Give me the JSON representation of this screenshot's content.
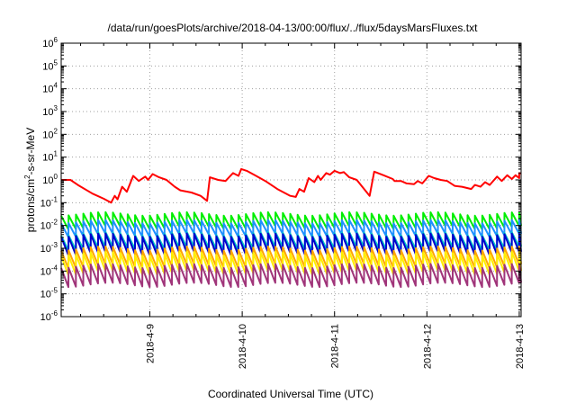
{
  "chart_data": {
    "type": "line",
    "title": "/data/run/goesPlots/archive/2018-04-13/00:00/flux/../flux/5daysMarsFluxes.txt",
    "xlabel": "Coordinated Universal Time (UTC)",
    "ylabel": "protons/cm²-s-sr-MeV",
    "ylabel_base": "protons/cm",
    "ylabel_sup": "2",
    "ylabel_tail": "-s-sr-MeV",
    "yscale": "log",
    "ylim_exp": [
      -6,
      6
    ],
    "yticks": [
      {
        "exp": -6,
        "base": "10",
        "sup": "-6"
      },
      {
        "exp": -5,
        "base": "10",
        "sup": "-5"
      },
      {
        "exp": -4,
        "base": "10",
        "sup": "-4"
      },
      {
        "exp": -3,
        "base": "10",
        "sup": "-3"
      },
      {
        "exp": -2,
        "base": "10",
        "sup": "-2"
      },
      {
        "exp": -1,
        "base": "10",
        "sup": "-1"
      },
      {
        "exp": 0,
        "base": "10",
        "sup": "0"
      },
      {
        "exp": 1,
        "base": "10",
        "sup": "1"
      },
      {
        "exp": 2,
        "base": "10",
        "sup": "2"
      },
      {
        "exp": 3,
        "base": "10",
        "sup": "3"
      },
      {
        "exp": 4,
        "base": "10",
        "sup": "4"
      },
      {
        "exp": 5,
        "base": "10",
        "sup": "5"
      },
      {
        "exp": 6,
        "base": "10",
        "sup": "6"
      }
    ],
    "xlim_days": [
      -0.96,
      4.02
    ],
    "xticks": [
      {
        "day": 0,
        "label": "2018-4-9"
      },
      {
        "day": 1,
        "label": "2018-4-10"
      },
      {
        "day": 2,
        "label": "2018-4-11"
      },
      {
        "day": 3,
        "label": "2018-4-12"
      },
      {
        "day": 4,
        "label": "2018-4-13"
      }
    ],
    "grid": true,
    "series": [
      {
        "color": "#ff0000",
        "points": [
          [
            -0.96,
            1.0
          ],
          [
            -0.86,
            1.0
          ],
          [
            -0.78,
            0.6
          ],
          [
            -0.62,
            0.25
          ],
          [
            -0.5,
            0.15
          ],
          [
            -0.42,
            0.1
          ],
          [
            -0.38,
            0.2
          ],
          [
            -0.35,
            0.14
          ],
          [
            -0.3,
            0.5
          ],
          [
            -0.25,
            0.3
          ],
          [
            -0.18,
            1.5
          ],
          [
            -0.12,
            0.9
          ],
          [
            -0.05,
            1.4
          ],
          [
            -0.02,
            1.0
          ],
          [
            0.03,
            1.8
          ],
          [
            0.1,
            1.3
          ],
          [
            0.18,
            1.0
          ],
          [
            0.27,
            0.5
          ],
          [
            0.33,
            0.35
          ],
          [
            0.45,
            0.28
          ],
          [
            0.55,
            0.2
          ],
          [
            0.62,
            0.12
          ],
          [
            0.65,
            1.3
          ],
          [
            0.74,
            1.0
          ],
          [
            0.82,
            0.9
          ],
          [
            0.9,
            2.0
          ],
          [
            0.96,
            1.5
          ],
          [
            0.99,
            3.0
          ],
          [
            1.05,
            2.5
          ],
          [
            1.15,
            1.5
          ],
          [
            1.25,
            0.9
          ],
          [
            1.38,
            0.4
          ],
          [
            1.52,
            0.2
          ],
          [
            1.58,
            0.18
          ],
          [
            1.62,
            0.4
          ],
          [
            1.67,
            0.3
          ],
          [
            1.72,
            1.2
          ],
          [
            1.78,
            0.8
          ],
          [
            1.82,
            1.5
          ],
          [
            1.85,
            1.0
          ],
          [
            1.91,
            2.0
          ],
          [
            1.95,
            1.7
          ],
          [
            2.0,
            2.5
          ],
          [
            2.06,
            2.0
          ],
          [
            2.1,
            2.2
          ],
          [
            2.16,
            1.3
          ],
          [
            2.24,
            1.0
          ],
          [
            2.38,
            0.2
          ],
          [
            2.43,
            2.3
          ],
          [
            2.53,
            1.6
          ],
          [
            2.63,
            1.1
          ],
          [
            2.65,
            0.9
          ],
          [
            2.72,
            0.9
          ],
          [
            2.78,
            0.7
          ],
          [
            2.86,
            0.65
          ],
          [
            2.9,
            0.9
          ],
          [
            2.95,
            0.7
          ],
          [
            3.02,
            1.5
          ],
          [
            3.08,
            1.2
          ],
          [
            3.15,
            1.0
          ],
          [
            3.22,
            0.9
          ],
          [
            3.3,
            0.55
          ],
          [
            3.38,
            0.5
          ],
          [
            3.48,
            0.4
          ],
          [
            3.52,
            0.6
          ],
          [
            3.58,
            0.5
          ],
          [
            3.63,
            0.8
          ],
          [
            3.68,
            0.6
          ],
          [
            3.76,
            1.4
          ],
          [
            3.81,
            0.9
          ],
          [
            3.87,
            1.6
          ],
          [
            3.92,
            1.1
          ],
          [
            3.96,
            1.6
          ],
          [
            4.0,
            1.2
          ],
          [
            4.0,
            2.0
          ],
          [
            4.02,
            1.9
          ]
        ]
      },
      {
        "color": "#00ee00",
        "base": 0.024,
        "drop": 2.0,
        "period": 0.08,
        "slowdip": 0.3
      },
      {
        "color": "#1e90ff",
        "base": 0.011,
        "drop": 2.0,
        "period": 0.08,
        "slowdip": 0.3
      },
      {
        "color": "#00c8c8",
        "base": 0.0032,
        "drop": 2.2,
        "period": 0.08,
        "slowdip": 0.3
      },
      {
        "color": "#0000cd",
        "base": 0.0028,
        "drop": 3.2,
        "period": 0.08,
        "slowdip": 0.3
      },
      {
        "color": "#ffa500",
        "base": 0.00075,
        "drop": 3.0,
        "period": 0.08,
        "slowdip": 0.35
      },
      {
        "color": "#ffee00",
        "base": 0.00045,
        "drop": 3.5,
        "period": 0.08,
        "slowdip": 0.35
      },
      {
        "color": "#a0357a",
        "base": 0.00013,
        "drop": 3.4,
        "period": 0.08,
        "slowdip": 0.35
      }
    ]
  }
}
